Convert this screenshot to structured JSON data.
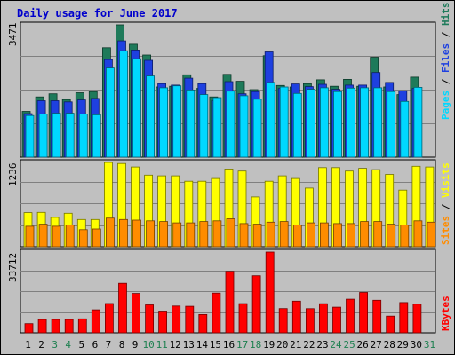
{
  "chart_data": {
    "type": "bar",
    "title": "Daily usage for June 2017",
    "categories": [
      "1",
      "2",
      "3",
      "4",
      "5",
      "6",
      "7",
      "8",
      "9",
      "10",
      "11",
      "12",
      "13",
      "14",
      "15",
      "16",
      "17",
      "18",
      "19",
      "20",
      "21",
      "22",
      "23",
      "24",
      "25",
      "26",
      "27",
      "28",
      "29",
      "30",
      "31"
    ],
    "weekend_days": [
      "3",
      "4",
      "10",
      "11",
      "17",
      "18",
      "24",
      "25",
      "31"
    ],
    "panels": [
      {
        "name": "hits-files-pages",
        "max_label": "3471",
        "ylim": [
          0,
          3471
        ],
        "grid": true,
        "right_labels": [
          "Pages",
          " / ",
          "Files",
          " / ",
          "Hits"
        ],
        "series": [
          {
            "name": "Hits",
            "color": "#1e7a5a",
            "values": [
              1200,
              1580,
              1660,
              1510,
              1690,
              1720,
              2870,
              3471,
              2960,
              2680,
              1840,
              1860,
              2160,
              1800,
              1580,
              2170,
              1990,
              1770,
              2660,
              1880,
              1840,
              1930,
              2030,
              1860,
              2040,
              1860,
              2620,
              1840,
              1640,
              2100,
              0
            ]
          },
          {
            "name": "Files",
            "color": "#1e40e0",
            "values": [
              1140,
              1480,
              1480,
              1450,
              1500,
              1540,
              2560,
              3050,
              2810,
              2540,
              1930,
              1890,
              2070,
              1930,
              1480,
              1980,
              1660,
              1720,
              2760,
              1800,
              1920,
              1850,
              1910,
              1780,
              1890,
              1890,
              2220,
              1960,
              1740,
              1800,
              0
            ]
          },
          {
            "name": "Pages",
            "color": "#00d8ff",
            "values": [
              1090,
              1130,
              1150,
              1150,
              1130,
              1110,
              2340,
              2790,
              2580,
              2130,
              1820,
              1870,
              1760,
              1640,
              1560,
              1730,
              1610,
              1520,
              1960,
              1840,
              1670,
              1780,
              1820,
              1720,
              1810,
              1820,
              1820,
              1720,
              1460,
              1830,
              0
            ]
          }
        ]
      },
      {
        "name": "visits-sites",
        "max_label": "1236",
        "ylim": [
          0,
          1236
        ],
        "grid": true,
        "right_labels": [
          "Sites",
          " / ",
          "Visits"
        ],
        "series": [
          {
            "name": "Visits",
            "color": "#ffff00",
            "values": [
              500,
              504,
              430,
              490,
              400,
              400,
              1236,
              1220,
              1170,
              1050,
              1040,
              1040,
              960,
              960,
              1000,
              1140,
              1110,
              730,
              960,
              1040,
              1000,
              860,
              1160,
              1160,
              1110,
              1150,
              1130,
              1060,
              830,
              1180,
              1170
            ]
          },
          {
            "name": "Sites",
            "color": "#ff8c00",
            "values": [
              300,
              330,
              300,
              320,
              250,
              260,
              420,
              400,
              390,
              380,
              370,
              350,
              350,
              370,
              380,
              410,
              340,
              330,
              360,
              370,
              320,
              350,
              350,
              340,
              340,
              370,
              370,
              330,
              320,
              380,
              360
            ]
          }
        ]
      },
      {
        "name": "kbytes",
        "max_label": "33712",
        "ylim": [
          0,
          33712
        ],
        "grid": true,
        "right_labels": [
          "KBytes"
        ],
        "series": [
          {
            "name": "KBytes",
            "color": "#ff0000",
            "values": [
              3830,
              5560,
              5560,
              5550,
              5830,
              9580,
              12230,
              20660,
              16460,
              11660,
              9060,
              11190,
              11090,
              7640,
              16580,
              25670,
              12180,
              23810,
              33712,
              10130,
              13220,
              10090,
              12150,
              10710,
              14050,
              16850,
              13600,
              6970,
              12620,
              11980,
              0
            ]
          }
        ]
      }
    ]
  }
}
